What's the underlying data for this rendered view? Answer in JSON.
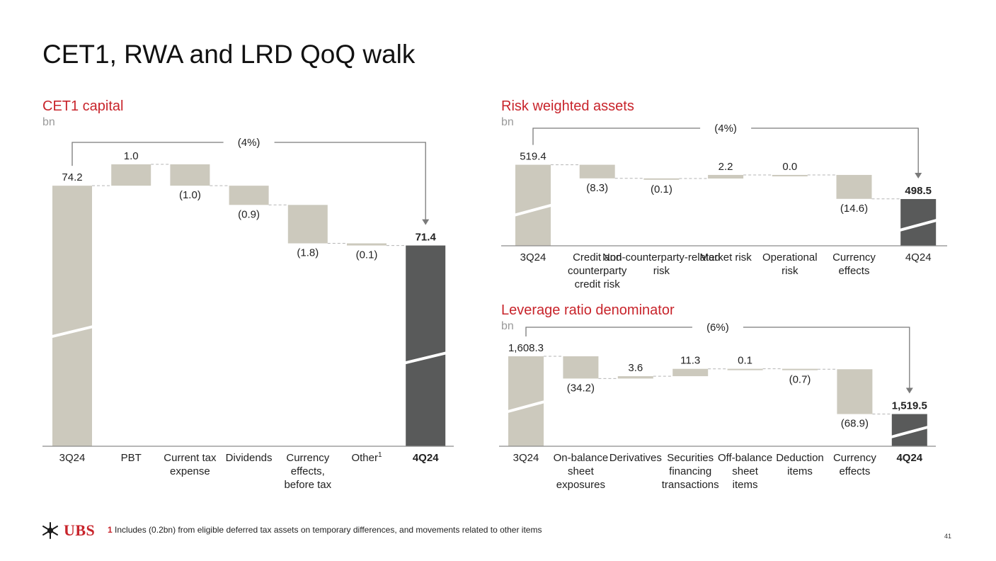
{
  "page": {
    "title": "CET1, RWA and LRD QoQ walk",
    "page_number": "41",
    "footnote_marker": "1",
    "footnote_text": "Includes (0.2bn) from eligible deferred tax assets on temporary differences, and movements related to other items",
    "logo_text": "UBS"
  },
  "colors": {
    "title_red": "#c8242b",
    "bar_light": "#ccc9bd",
    "bar_dark": "#595a5a",
    "axis": "#8c8c8c"
  },
  "chart_data": [
    {
      "id": "cet1",
      "type": "waterfall",
      "title": "CET1 capital",
      "unit": "bn",
      "bracket_label": "(4%)",
      "categories": [
        "3Q24",
        "PBT",
        "Current tax expense",
        "Dividends",
        "Currency effects, before tax",
        "Other",
        "4Q24"
      ],
      "category_superscripts": [
        "",
        "",
        "",
        "",
        "",
        "1",
        ""
      ],
      "values": [
        74.2,
        1.0,
        -1.0,
        -0.9,
        -1.8,
        -0.1,
        71.4
      ],
      "labels": [
        "74.2",
        "1.0",
        "(1.0)",
        "(0.9)",
        "(1.8)",
        "(0.1)",
        "71.4"
      ],
      "bold_last": true,
      "bold_last_category": true,
      "scale_break": true
    },
    {
      "id": "rwa",
      "type": "waterfall",
      "title": "Risk weighted assets",
      "unit": "bn",
      "bracket_label": "(4%)",
      "categories": [
        "3Q24",
        "Credit and counterparty credit risk",
        "Non-counterparty-related risk",
        "Market risk",
        "Operational risk",
        "Currency effects",
        "4Q24"
      ],
      "values": [
        519.4,
        -8.3,
        -0.1,
        2.2,
        0.0,
        -14.6,
        498.5
      ],
      "labels": [
        "519.4",
        "(8.3)",
        "(0.1)",
        "2.2",
        "0.0",
        "(14.6)",
        "498.5"
      ],
      "bold_last": true,
      "bold_last_category": false,
      "scale_break": true
    },
    {
      "id": "lrd",
      "type": "waterfall",
      "title": "Leverage ratio denominator",
      "unit": "bn",
      "bracket_label": "(6%)",
      "categories": [
        "3Q24",
        "On-balance sheet exposures",
        "Derivatives",
        "Securities financing transactions",
        "Off-balance sheet items",
        "Deduction items",
        "Currency effects",
        "4Q24"
      ],
      "values": [
        1608.3,
        -34.2,
        3.6,
        11.3,
        0.1,
        -0.7,
        -68.9,
        1519.5
      ],
      "labels": [
        "1,608.3",
        "(34.2)",
        "3.6",
        "11.3",
        "0.1",
        "(0.7)",
        "(68.9)",
        "1,519.5"
      ],
      "bold_last": true,
      "bold_last_category": true,
      "scale_break": true
    }
  ]
}
